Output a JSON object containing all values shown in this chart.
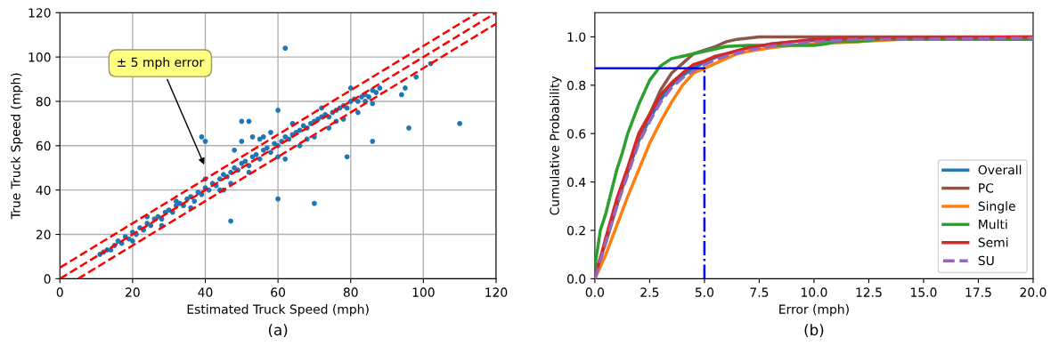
{
  "chart_data": [
    {
      "type": "scatter",
      "xlabel": "Estimated Truck Speed (mph)",
      "ylabel": "True Truck Speed (mph)",
      "xlim": [
        0,
        120
      ],
      "ylim": [
        0,
        120
      ],
      "xticks": [
        0,
        20,
        40,
        60,
        80,
        100,
        120
      ],
      "yticks": [
        0,
        20,
        40,
        60,
        80,
        100,
        120
      ],
      "grid": true,
      "legend": false,
      "annotations": [
        "± 5 mph error",
        "(a)"
      ],
      "series": [
        {
          "type": "scatter",
          "color": "#1f77b4",
          "marker": "circle",
          "x": [
            11,
            12,
            13,
            14,
            15,
            16,
            17,
            18,
            19,
            20,
            21,
            22,
            23,
            24,
            25,
            26,
            27,
            28,
            29,
            30,
            31,
            32,
            33,
            34,
            35,
            36,
            37,
            38,
            39,
            40,
            41,
            42,
            43,
            44,
            45,
            46,
            47,
            48,
            49,
            50,
            51,
            52,
            53,
            54,
            55,
            56,
            57,
            58,
            59,
            60,
            61,
            62,
            63,
            64,
            65,
            66,
            67,
            68,
            69,
            70,
            71,
            72,
            73,
            74,
            75,
            76,
            77,
            78,
            79,
            80,
            81,
            82,
            83,
            84,
            85,
            86,
            87,
            88,
            20,
            24,
            28,
            32,
            36,
            40,
            44,
            48,
            52,
            56,
            60,
            64,
            68,
            72,
            76,
            80,
            84,
            50,
            53,
            55,
            58,
            45,
            47,
            62,
            66,
            70,
            74,
            78,
            82,
            86,
            62,
            102,
            98,
            110,
            96,
            86,
            79,
            60,
            70,
            47,
            39,
            40,
            60,
            50,
            52,
            94,
            95
          ],
          "values": [
            11,
            12,
            13,
            13,
            15,
            17,
            16,
            19,
            18,
            21,
            20,
            23,
            22,
            25,
            24,
            27,
            28,
            27,
            30,
            31,
            30,
            33,
            34,
            33,
            36,
            37,
            35,
            39,
            38,
            41,
            40,
            43,
            42,
            45,
            47,
            46,
            48,
            50,
            49,
            52,
            53,
            51,
            55,
            56,
            54,
            58,
            59,
            57,
            61,
            60,
            62,
            64,
            63,
            65,
            66,
            67,
            69,
            68,
            70,
            71,
            72,
            73,
            74,
            73,
            75,
            76,
            77,
            78,
            77,
            80,
            81,
            80,
            82,
            83,
            82,
            85,
            84,
            86,
            17,
            28,
            24,
            35,
            32,
            45,
            40,
            58,
            48,
            64,
            55,
            70,
            63,
            77,
            71,
            86,
            80,
            62,
            64,
            63,
            66,
            40,
            43,
            54,
            60,
            64,
            68,
            72,
            75,
            79,
            104,
            97,
            91,
            70,
            68,
            62,
            55,
            36,
            34,
            26,
            64,
            62,
            76,
            71,
            71,
            83,
            86
          ]
        },
        {
          "type": "line",
          "color": "#ff0000",
          "line_style": "dashed",
          "marker": "none",
          "x": [
            0,
            120
          ],
          "values": [
            0,
            120
          ]
        },
        {
          "type": "line",
          "color": "#ff0000",
          "line_style": "dashed",
          "marker": "none",
          "x": [
            0,
            115
          ],
          "values": [
            5,
            120
          ]
        },
        {
          "type": "line",
          "color": "#ff0000",
          "line_style": "dashed",
          "marker": "none",
          "x": [
            5,
            120
          ],
          "values": [
            0,
            115
          ]
        }
      ]
    },
    {
      "type": "line",
      "xlabel": "Error (mph)",
      "ylabel": "Cumulative Probability",
      "xlim": [
        0,
        20
      ],
      "ylim": [
        0,
        1.1
      ],
      "xticks": [
        {
          "value": 0,
          "label": "0.0"
        },
        {
          "value": 2.5,
          "label": "2.5"
        },
        {
          "value": 5,
          "label": "5.0"
        },
        {
          "value": 7.5,
          "label": "7.5"
        },
        {
          "value": 10,
          "label": "10.0"
        },
        {
          "value": 12.5,
          "label": "12.5"
        },
        {
          "value": 15,
          "label": "15.0"
        },
        {
          "value": 17.5,
          "label": "17.5"
        },
        {
          "value": 20,
          "label": "20.0"
        }
      ],
      "yticks": [
        {
          "value": 0,
          "label": "0.0"
        },
        {
          "value": 0.2,
          "label": "0.2"
        },
        {
          "value": 0.4,
          "label": "0.4"
        },
        {
          "value": 0.6,
          "label": "0.6"
        },
        {
          "value": 0.8,
          "label": "0.8"
        },
        {
          "value": 1,
          "label": "1.0"
        }
      ],
      "grid": false,
      "legend": "bottom right",
      "annotations": [
        "(b)"
      ],
      "series": [
        {
          "name": "Overall",
          "color": "#1f77b4",
          "line_style": "solid",
          "marker": "none",
          "x": [
            1,
            1.5,
            2,
            2.5,
            3,
            3.5,
            4,
            4.5,
            5,
            5.5,
            6,
            7,
            8,
            9,
            10,
            12
          ],
          "values": [
            0.31,
            0.44,
            0.57,
            0.66,
            0.74,
            0.8,
            0.84,
            0.87,
            0.895,
            0.915,
            0.93,
            0.955,
            0.97,
            0.98,
            0.985,
            0.99
          ]
        },
        {
          "name": "PC",
          "color": "#8c564b",
          "line_style": "solid",
          "marker": "none",
          "x": [
            0,
            0.5,
            1,
            1.5,
            2,
            2.5,
            3,
            3.5,
            4,
            4.5,
            5,
            5.5,
            6,
            6.5,
            7.5,
            20
          ],
          "values": [
            0.02,
            0.15,
            0.3,
            0.45,
            0.58,
            0.68,
            0.78,
            0.85,
            0.89,
            0.93,
            0.945,
            0.96,
            0.98,
            0.99,
            1.0,
            1.0
          ]
        },
        {
          "name": "Single",
          "color": "#ff7f0e",
          "line_style": "solid",
          "marker": "none",
          "x": [
            0,
            0.5,
            1,
            1.5,
            2,
            2.5,
            3,
            3.5,
            4,
            4.5,
            5,
            5.5,
            6,
            6.5,
            7,
            8,
            9,
            10,
            12,
            14,
            20
          ],
          "values": [
            0,
            0.1,
            0.22,
            0.34,
            0.45,
            0.56,
            0.65,
            0.73,
            0.8,
            0.85,
            0.87,
            0.89,
            0.91,
            0.93,
            0.94,
            0.955,
            0.965,
            0.97,
            0.98,
            0.99,
            0.99
          ]
        },
        {
          "name": "Multi",
          "color": "#2ca02c",
          "line_style": "solid",
          "marker": "none",
          "x": [
            0,
            0.25,
            0.5,
            1,
            1.25,
            1.5,
            2,
            2.5,
            3,
            3.5,
            4,
            5,
            6,
            7,
            8,
            9,
            10,
            10.5,
            11,
            12,
            13,
            20
          ],
          "values": [
            0.05,
            0.2,
            0.27,
            0.45,
            0.52,
            0.6,
            0.72,
            0.82,
            0.88,
            0.91,
            0.92,
            0.94,
            0.96,
            0.965,
            0.965,
            0.965,
            0.965,
            0.97,
            0.98,
            0.98,
            0.99,
            0.99
          ]
        },
        {
          "name": "Semi",
          "color": "#d62728",
          "line_style": "solid",
          "marker": "none",
          "x": [
            0,
            0.5,
            1,
            1.5,
            2,
            2.5,
            3,
            3.5,
            4,
            4.5,
            5,
            5.5,
            6,
            7,
            8,
            9,
            10,
            12,
            20
          ],
          "values": [
            0,
            0.17,
            0.33,
            0.46,
            0.6,
            0.68,
            0.76,
            0.81,
            0.85,
            0.885,
            0.9,
            0.92,
            0.93,
            0.955,
            0.97,
            0.98,
            0.99,
            0.995,
            1.0
          ]
        },
        {
          "name": "SU",
          "color": "#9467bd",
          "line_style": "dashed",
          "marker": "none",
          "x": [
            0,
            0.5,
            1,
            1.5,
            2,
            2.5,
            3,
            3.5,
            4,
            4.5,
            5,
            5.5,
            6,
            7,
            8,
            9,
            10,
            12,
            15,
            20
          ],
          "values": [
            0,
            0.15,
            0.3,
            0.43,
            0.56,
            0.65,
            0.73,
            0.79,
            0.83,
            0.86,
            0.885,
            0.905,
            0.92,
            0.945,
            0.96,
            0.97,
            0.98,
            0.99,
            0.99,
            0.995
          ]
        },
        {
          "type": "line",
          "color": "#0000ff",
          "line_style": "solid",
          "marker": "none",
          "x": [
            0,
            5
          ],
          "values": [
            0.87,
            0.87
          ]
        },
        {
          "type": "line",
          "color": "#0000ff",
          "line_style": "dotted",
          "marker": "none",
          "x": [
            5,
            5
          ],
          "values": [
            0,
            0.87
          ]
        }
      ]
    }
  ]
}
